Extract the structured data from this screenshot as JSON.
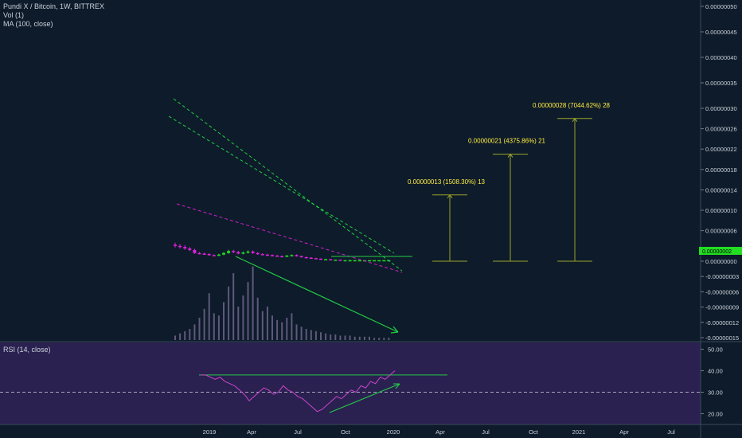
{
  "legend": {
    "symbol": "Pundi X / Bitcoin, 1W, BITTREX",
    "vol": "Vol (1)",
    "ma": "MA (100, close)",
    "rsi": "RSI (14, close)"
  },
  "price_badge": "0.00000002",
  "colors": {
    "background": "#0e1b2a",
    "rsi_background": "#2a2150",
    "up": "#22dd22",
    "down": "#dd22dd",
    "trend_green": "#22cc44",
    "trend_magenta": "#cc22cc",
    "target_line": "#9aa62a",
    "annotation_text": "#ffee44"
  },
  "chart_data": [
    {
      "type": "candlestick",
      "title": "Pundi X / Bitcoin, 1W, BITTREX",
      "y_ticks": [
        "0.00000050",
        "0.00000045",
        "0.00000040",
        "0.00000035",
        "0.00000030",
        "0.00000026",
        "0.00000022",
        "0.00000018",
        "0.00000014",
        "0.00000010",
        "0.00000006",
        "0.00000002",
        "0.00000000",
        "-0.00000003",
        "-0.00000006",
        "-0.00000009",
        "-0.00000012",
        "-0.00000015"
      ],
      "x_ticks": [
        "2019",
        "Apr",
        "Jul",
        "Oct",
        "2020",
        "Apr",
        "Jul",
        "Oct",
        "2021",
        "Apr",
        "Jul"
      ],
      "ylim": [
        -1.5e-07,
        5e-07
      ],
      "close_series": [
        3e-08,
        2.8e-08,
        2.5e-08,
        2.2e-08,
        1.6e-08,
        1.5e-08,
        1.4e-08,
        1.2e-08,
        1.1e-08,
        1.3e-08,
        1.6e-08,
        2e-08,
        1.8e-08,
        1.5e-08,
        1.7e-08,
        1.9e-08,
        1.6e-08,
        1.4e-08,
        1.3e-08,
        1.2e-08,
        1.1e-08,
        1e-08,
        9e-09,
        1.1e-08,
        1.2e-08,
        1e-08,
        8e-09,
        7e-09,
        6e-09,
        5e-09,
        4e-09,
        4e-09,
        3e-09,
        3e-09,
        2e-09,
        2e-09,
        2e-09,
        2e-09,
        2e-09,
        2e-09,
        2e-09,
        2e-09,
        2e-09,
        2e-09,
        2e-09
      ],
      "volume_series": [
        4,
        6,
        8,
        10,
        14,
        20,
        28,
        42,
        24,
        22,
        34,
        48,
        60,
        30,
        40,
        52,
        66,
        38,
        26,
        30,
        22,
        18,
        16,
        20,
        24,
        14,
        12,
        10,
        9,
        8,
        7,
        6,
        5,
        5,
        4,
        4,
        4,
        3,
        3,
        3,
        3,
        2,
        2,
        2,
        2
      ],
      "targets": [
        {
          "label": "0.00000013 (1508.30%) 13",
          "value": 1.3e-07
        },
        {
          "label": "0.00000021 (4375.86%) 21",
          "value": 2.1e-07
        },
        {
          "label": "0.00000028 (7044.62%) 28",
          "value": 2.8e-07
        }
      ]
    },
    {
      "type": "line",
      "title": "RSI (14, close)",
      "y_ticks": [
        "50.00",
        "40.00",
        "30.00",
        "20.00"
      ],
      "ylim": [
        15,
        55
      ],
      "reference_lines": [
        38,
        30
      ],
      "values": [
        38,
        38,
        37,
        36,
        37,
        35,
        34,
        33,
        31,
        29,
        26,
        28,
        30,
        32,
        31,
        29,
        30,
        33,
        31,
        30,
        28,
        27,
        25,
        23,
        21,
        22,
        24,
        26,
        28,
        27,
        29,
        31,
        30,
        33,
        32,
        35,
        34,
        37,
        36,
        38,
        40
      ]
    }
  ]
}
